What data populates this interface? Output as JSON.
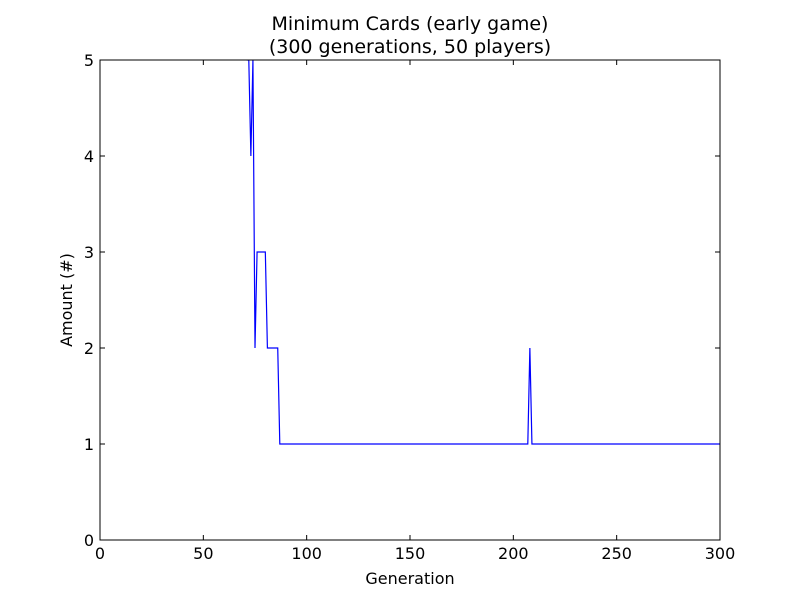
{
  "chart_data": {
    "type": "line",
    "title": "Minimum Cards (early game)",
    "subtitle": "(300 generations, 50 players)",
    "xlabel": "Generation",
    "ylabel": "Amount (#)",
    "xlim": [
      0,
      300
    ],
    "ylim": [
      0,
      5
    ],
    "xticks": [
      0,
      50,
      100,
      150,
      200,
      250,
      300
    ],
    "yticks": [
      0,
      1,
      2,
      3,
      4,
      5
    ],
    "grid": false,
    "series_color": "#0000ff",
    "series": [
      {
        "x": [
          71,
          72,
          73,
          74,
          75,
          76,
          77,
          78,
          79,
          80,
          81,
          82,
          83,
          84,
          85,
          86,
          87,
          88,
          100,
          150,
          200,
          206,
          207,
          208,
          209,
          210,
          250,
          300
        ],
        "y": [
          5,
          5,
          4,
          5,
          2,
          3,
          3,
          3,
          3,
          3,
          2,
          2,
          2,
          2,
          2,
          2,
          1,
          1,
          1,
          1,
          1,
          1,
          1,
          2,
          1,
          1,
          1,
          1
        ]
      }
    ]
  }
}
